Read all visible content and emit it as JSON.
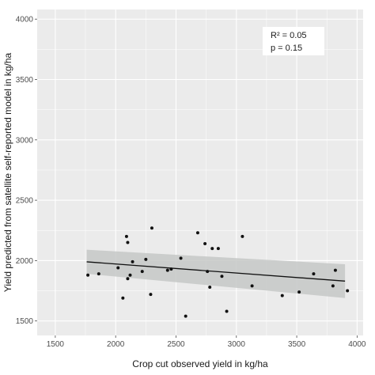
{
  "chart_data": {
    "type": "scatter",
    "xlabel": "Crop cut observed yield in kg/ha",
    "ylabel": "Yield predicted from satellite self-reported model in kg/ha",
    "xlim": [
      1350,
      4050
    ],
    "ylim": [
      1380,
      4080
    ],
    "xticks": [
      1500,
      2000,
      2500,
      3000,
      3500,
      4000
    ],
    "yticks": [
      1500,
      2000,
      2500,
      3000,
      3500,
      4000
    ],
    "grid": true,
    "background": "#ebebeb",
    "annotations": [
      {
        "text": "R² = 0.05"
      },
      {
        "text": "p = 0.15"
      }
    ],
    "points": [
      {
        "x": 1770,
        "y": 1880
      },
      {
        "x": 1860,
        "y": 1890
      },
      {
        "x": 2020,
        "y": 1940
      },
      {
        "x": 2060,
        "y": 1690
      },
      {
        "x": 2090,
        "y": 2200
      },
      {
        "x": 2100,
        "y": 2150
      },
      {
        "x": 2100,
        "y": 1850
      },
      {
        "x": 2120,
        "y": 1880
      },
      {
        "x": 2140,
        "y": 1990
      },
      {
        "x": 2220,
        "y": 1910
      },
      {
        "x": 2250,
        "y": 2010
      },
      {
        "x": 2290,
        "y": 1720
      },
      {
        "x": 2300,
        "y": 2270
      },
      {
        "x": 2430,
        "y": 1920
      },
      {
        "x": 2460,
        "y": 1930
      },
      {
        "x": 2540,
        "y": 2020
      },
      {
        "x": 2580,
        "y": 1540
      },
      {
        "x": 2680,
        "y": 2230
      },
      {
        "x": 2740,
        "y": 2140
      },
      {
        "x": 2760,
        "y": 1910
      },
      {
        "x": 2780,
        "y": 1780
      },
      {
        "x": 2800,
        "y": 2100
      },
      {
        "x": 2850,
        "y": 2100
      },
      {
        "x": 2880,
        "y": 1870
      },
      {
        "x": 2920,
        "y": 1580
      },
      {
        "x": 3050,
        "y": 2200
      },
      {
        "x": 3130,
        "y": 1790
      },
      {
        "x": 3380,
        "y": 1710
      },
      {
        "x": 3520,
        "y": 1740
      },
      {
        "x": 3640,
        "y": 1890
      },
      {
        "x": 3800,
        "y": 1790
      },
      {
        "x": 3820,
        "y": 1920
      },
      {
        "x": 3920,
        "y": 1750
      }
    ],
    "regression": {
      "x_range": [
        1760,
        3900
      ],
      "line": [
        1990,
        1830
      ],
      "ci_upper": [
        2090,
        1970
      ],
      "ci_lower": [
        1890,
        1690
      ],
      "line_color": "#111111",
      "ci_color": "#c6c8c7"
    }
  }
}
